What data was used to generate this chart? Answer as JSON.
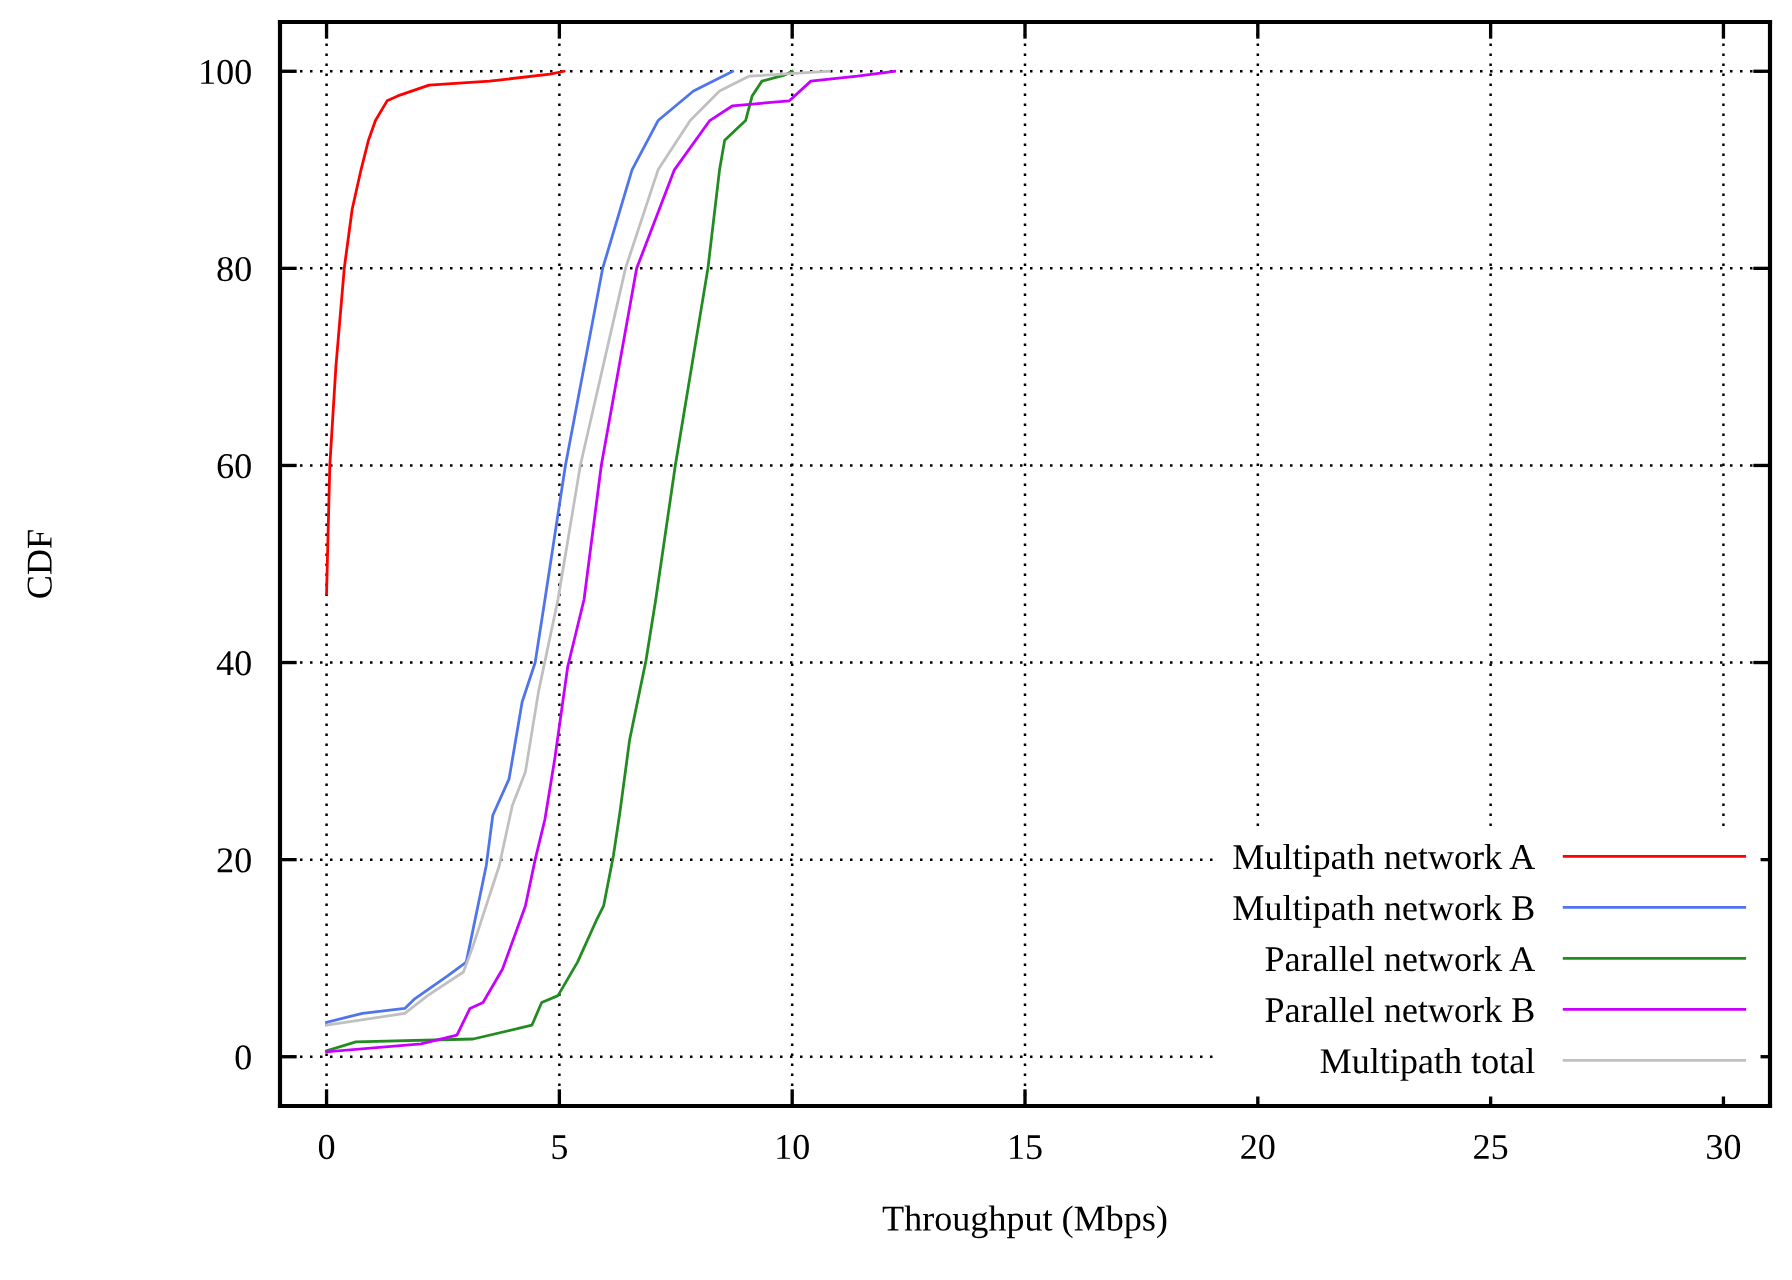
{
  "chart_data": {
    "type": "line",
    "xlabel": "Throughput (Mbps)",
    "ylabel": "CDF",
    "xlim": [
      -1,
      31
    ],
    "xticks": [
      0,
      5,
      10,
      15,
      20,
      25,
      30
    ],
    "ylim": [
      -5,
      105
    ],
    "yticks": [
      0,
      20,
      40,
      60,
      80,
      100
    ],
    "grid": true,
    "legend": "bottom right",
    "line_style": "solid",
    "marker": "none",
    "series": [
      {
        "name": "Multipath network A",
        "color": "#ff0000",
        "x": [
          0,
          0.07,
          0.2,
          0.38,
          0.55,
          0.74,
          0.9,
          1.05,
          1.3,
          1.53,
          2.2,
          3.5,
          4.8,
          5.1
        ],
        "values": [
          47,
          60,
          70,
          80,
          86,
          90,
          93,
          95,
          97,
          97.5,
          98.6,
          99,
          99.7,
          100
        ]
      },
      {
        "name": "Multipath network B",
        "color": "#4f74ec",
        "x": [
          0,
          0.77,
          1.68,
          1.9,
          2.6,
          3.0,
          3.15,
          3.43,
          3.57,
          3.92,
          4.2,
          4.48,
          4.69,
          5.13,
          5.93,
          6.56,
          7.12,
          7.88,
          8.72
        ],
        "values": [
          3.5,
          4.4,
          4.9,
          5.9,
          8.2,
          9.6,
          13,
          19.4,
          24.5,
          28.2,
          36,
          40,
          46.4,
          60,
          80,
          90,
          95,
          98,
          100
        ]
      },
      {
        "name": "Parallel network A",
        "color": "#228b22",
        "x": [
          0,
          0.63,
          3.15,
          4.41,
          4.62,
          4.97,
          5.39,
          5.81,
          5.95,
          6.16,
          6.3,
          6.51,
          6.86,
          7.07,
          7.49,
          8.19,
          8.44,
          8.55,
          9.0,
          9.14,
          9.35,
          9.83,
          10.0
        ],
        "values": [
          0.6,
          1.5,
          1.8,
          3.2,
          5.5,
          6.2,
          9.6,
          14,
          15.3,
          20.4,
          24.8,
          32.2,
          40.2,
          46.4,
          60,
          80,
          90,
          93,
          95,
          97.5,
          99,
          99.6,
          100
        ]
      },
      {
        "name": "Parallel network B",
        "color": "#c800ff",
        "x": [
          0,
          2.03,
          2.8,
          3.08,
          3.36,
          3.78,
          4.27,
          4.48,
          4.69,
          4.9,
          5.18,
          5.53,
          5.9,
          6.66,
          7.47,
          8.23,
          8.72,
          9.94,
          10.4,
          11.4,
          12.2
        ],
        "values": [
          0.5,
          1.3,
          2.2,
          4.9,
          5.5,
          8.9,
          15.3,
          20,
          24.1,
          30.2,
          39.6,
          46.4,
          60,
          80,
          90,
          95,
          96.5,
          97,
          99,
          99.5,
          100
        ]
      },
      {
        "name": "Multipath total",
        "color": "#c0c0c0",
        "x": [
          0,
          1.68,
          2.17,
          2.94,
          3.15,
          3.71,
          3.99,
          4.27,
          4.55,
          4.97,
          5.45,
          6.42,
          7.12,
          7.81,
          8.44,
          9.07,
          10.8
        ],
        "values": [
          3.2,
          4.4,
          6.2,
          8.6,
          11.3,
          19.4,
          25.5,
          28.9,
          37,
          46.4,
          60,
          80,
          90,
          95,
          98,
          99.5,
          100
        ]
      }
    ]
  }
}
